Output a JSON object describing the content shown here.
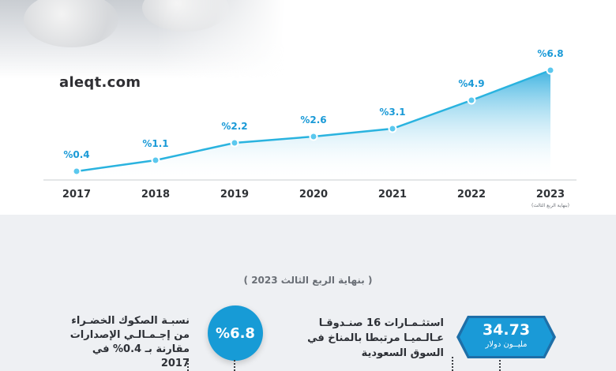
{
  "site": "aleqt.com",
  "chart_data": {
    "type": "area",
    "categories": [
      "2017",
      "2018",
      "2019",
      "2020",
      "2021",
      "2022",
      "2023"
    ],
    "values": [
      0.4,
      1.1,
      2.2,
      2.6,
      3.1,
      4.9,
      6.8
    ],
    "data_labels": [
      "%0.4",
      "%1.1",
      "%2.2",
      "%2.6",
      "%3.1",
      "%4.9",
      "%6.8"
    ],
    "last_category_note": "(بنهاية الربع الثالث)",
    "colors": {
      "line": "#2ab3df",
      "fill_top": "#1fa7dc",
      "point": "#5bc8ee",
      "label": "#1a9ad7"
    }
  },
  "caption": "( بنهاية الربع الثالث 2023 )",
  "stats": {
    "green_sukuk_share": {
      "text": "نسبـة الصكوك الخضـراء من إجـمـالـي الإصدارات مقارنة بـ 0.4% في 2017",
      "value": "%6.8"
    },
    "investments": {
      "text": "استثـمـارات 16 صنـدوقـا عـالـميـا مرتبطا بالمناخ في السوق السعودية",
      "value": "34.73",
      "unit": "مليــون دولار"
    }
  }
}
